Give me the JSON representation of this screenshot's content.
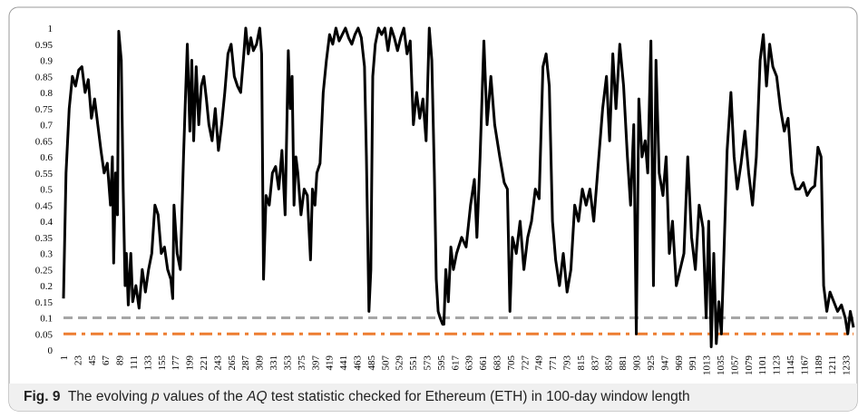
{
  "chart_data": {
    "type": "line",
    "caption": {
      "label": "Fig. 9",
      "parts": [
        "The evolving ",
        "p",
        " values of the ",
        "AQ",
        " test statistic checked for Ethereum (ETH) in 100-day window length"
      ]
    },
    "series": [
      {
        "color": "#000000",
        "x": [
          1,
          5,
          10,
          15,
          20,
          25,
          30,
          35,
          40,
          45,
          50,
          55,
          60,
          65,
          70,
          75,
          78,
          80,
          83,
          86,
          88,
          92,
          95,
          98,
          100,
          103,
          107,
          110,
          115,
          120,
          125,
          130,
          135,
          140,
          145,
          150,
          155,
          160,
          165,
          170,
          173,
          175,
          180,
          185,
          190,
          193,
          196,
          200,
          203,
          206,
          210,
          214,
          218,
          222,
          226,
          230,
          235,
          240,
          245,
          250,
          255,
          260,
          265,
          270,
          275,
          280,
          285,
          288,
          292,
          296,
          300,
          305,
          310,
          313,
          316,
          320,
          325,
          330,
          335,
          340,
          345,
          350,
          355,
          358,
          361,
          364,
          367,
          370,
          375,
          380,
          385,
          390,
          393,
          397,
          400,
          405,
          410,
          415,
          420,
          425,
          430,
          435,
          440,
          445,
          450,
          455,
          460,
          465,
          470,
          475,
          478,
          482,
          485,
          488,
          492,
          497,
          502,
          507,
          512,
          517,
          522,
          527,
          532,
          537,
          542,
          547,
          552,
          557,
          562,
          567,
          572,
          577,
          581,
          585,
          588,
          591,
          594,
          598,
          600,
          603,
          607,
          611,
          615,
          620,
          628,
          635,
          642,
          648,
          652,
          657,
          663,
          668,
          674,
          680,
          688,
          695,
          700,
          704,
          708,
          714,
          720,
          726,
          732,
          738,
          744,
          750,
          756,
          761,
          766,
          771,
          776,
          782,
          788,
          794,
          800,
          806,
          812,
          818,
          824,
          830,
          836,
          842,
          850,
          856,
          861,
          866,
          871,
          877,
          883,
          889,
          894,
          899,
          903,
          907,
          912,
          917,
          921,
          926,
          930,
          934,
          939,
          945,
          950,
          955,
          960,
          966,
          972,
          978,
          984,
          990,
          996,
          1002,
          1008,
          1013,
          1017,
          1021,
          1025,
          1029,
          1033,
          1037,
          1041,
          1046,
          1052,
          1057,
          1062,
          1068,
          1074,
          1080,
          1086,
          1092,
          1098,
          1103,
          1108,
          1113,
          1118,
          1124,
          1130,
          1136,
          1142,
          1148,
          1154,
          1160,
          1166,
          1172,
          1178,
          1184,
          1189,
          1194,
          1198,
          1203,
          1208,
          1214,
          1220,
          1226,
          1232,
          1236,
          1240,
          1245
        ],
        "values": [
          0.16,
          0.55,
          0.75,
          0.85,
          0.82,
          0.87,
          0.88,
          0.8,
          0.84,
          0.72,
          0.78,
          0.7,
          0.62,
          0.55,
          0.58,
          0.45,
          0.6,
          0.27,
          0.55,
          0.42,
          0.99,
          0.9,
          0.5,
          0.2,
          0.3,
          0.14,
          0.3,
          0.15,
          0.2,
          0.13,
          0.25,
          0.18,
          0.25,
          0.3,
          0.45,
          0.42,
          0.3,
          0.32,
          0.25,
          0.22,
          0.16,
          0.45,
          0.3,
          0.25,
          0.6,
          0.78,
          0.95,
          0.68,
          0.9,
          0.65,
          0.88,
          0.7,
          0.82,
          0.85,
          0.78,
          0.7,
          0.65,
          0.75,
          0.62,
          0.7,
          0.8,
          0.92,
          0.95,
          0.85,
          0.82,
          0.8,
          0.92,
          1,
          0.92,
          0.97,
          0.93,
          0.95,
          1,
          0.92,
          0.22,
          0.48,
          0.45,
          0.55,
          0.57,
          0.5,
          0.62,
          0.42,
          0.93,
          0.75,
          0.85,
          0.45,
          0.6,
          0.55,
          0.42,
          0.5,
          0.48,
          0.28,
          0.5,
          0.45,
          0.55,
          0.58,
          0.8,
          0.9,
          0.98,
          0.95,
          1,
          0.96,
          0.98,
          1,
          0.97,
          0.95,
          0.98,
          1,
          0.97,
          0.88,
          0.6,
          0.12,
          0.25,
          0.85,
          0.95,
          1,
          0.98,
          1,
          0.93,
          1,
          0.97,
          0.93,
          0.97,
          1,
          0.92,
          0.96,
          0.7,
          0.8,
          0.72,
          0.78,
          0.65,
          1,
          0.9,
          0.55,
          0.22,
          0.12,
          0.1,
          0.08,
          0.08,
          0.25,
          0.15,
          0.32,
          0.25,
          0.3,
          0.35,
          0.32,
          0.45,
          0.53,
          0.35,
          0.6,
          0.96,
          0.7,
          0.85,
          0.7,
          0.6,
          0.52,
          0.5,
          0.12,
          0.35,
          0.3,
          0.4,
          0.25,
          0.35,
          0.4,
          0.5,
          0.47,
          0.88,
          0.92,
          0.82,
          0.4,
          0.28,
          0.2,
          0.3,
          0.18,
          0.25,
          0.45,
          0.4,
          0.5,
          0.45,
          0.5,
          0.4,
          0.55,
          0.75,
          0.85,
          0.65,
          0.92,
          0.75,
          0.95,
          0.82,
          0.6,
          0.45,
          0.7,
          0.05,
          0.78,
          0.6,
          0.65,
          0.55,
          0.96,
          0.2,
          0.9,
          0.55,
          0.48,
          0.6,
          0.3,
          0.4,
          0.2,
          0.25,
          0.3,
          0.6,
          0.35,
          0.25,
          0.45,
          0.38,
          0.1,
          0.4,
          0.01,
          0.3,
          0.02,
          0.15,
          0.05,
          0.3,
          0.62,
          0.8,
          0.6,
          0.5,
          0.58,
          0.68,
          0.55,
          0.45,
          0.6,
          0.9,
          0.98,
          0.82,
          0.95,
          0.88,
          0.85,
          0.75,
          0.68,
          0.72,
          0.55,
          0.5,
          0.5,
          0.52,
          0.48,
          0.5,
          0.51,
          0.63,
          0.6,
          0.2,
          0.12,
          0.18,
          0.15,
          0.12,
          0.14,
          0.1,
          0.05,
          0.12,
          0.07
        ]
      }
    ],
    "hlines": [
      {
        "value": 0.1,
        "color": "#a6a6a6",
        "dash": "dashed"
      },
      {
        "value": 0.05,
        "color": "#ed7d31",
        "dash": "dash-dot"
      }
    ],
    "xlim": [
      1,
      1245
    ],
    "ylim": [
      0,
      1
    ],
    "xticks": [
      1,
      23,
      45,
      67,
      89,
      111,
      133,
      155,
      177,
      199,
      221,
      243,
      265,
      287,
      309,
      331,
      353,
      375,
      397,
      419,
      441,
      463,
      485,
      507,
      529,
      551,
      573,
      595,
      617,
      639,
      661,
      683,
      705,
      727,
      749,
      771,
      793,
      815,
      837,
      859,
      881,
      903,
      925,
      947,
      969,
      991,
      1013,
      1035,
      1057,
      1079,
      1101,
      1123,
      1145,
      1167,
      1189,
      1211,
      1233
    ],
    "yticks": [
      0,
      0.05,
      0.1,
      0.15,
      0.2,
      0.25,
      0.3,
      0.35,
      0.4,
      0.45,
      0.5,
      0.55,
      0.6,
      0.65,
      0.7,
      0.75,
      0.8,
      0.85,
      0.9,
      0.95,
      1
    ],
    "grid": false
  }
}
